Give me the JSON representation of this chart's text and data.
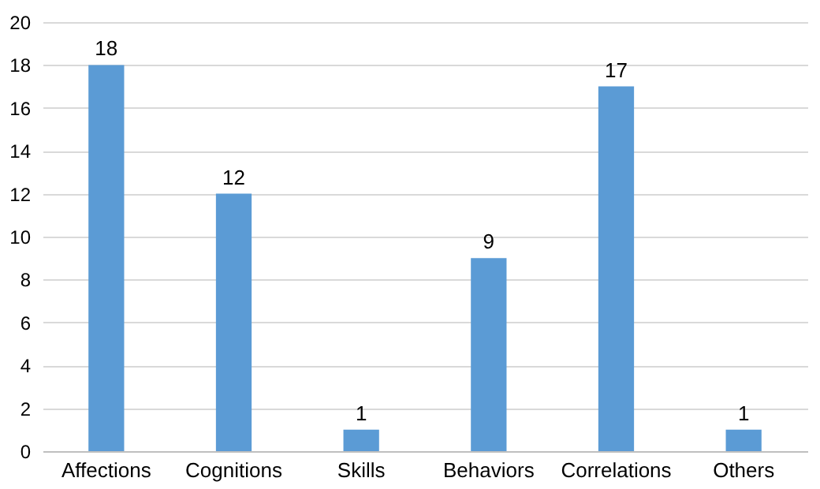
{
  "chart_data": {
    "type": "bar",
    "categories": [
      "Affections",
      "Cognitions",
      "Skills",
      "Behaviors",
      "Correlations",
      "Others"
    ],
    "values": [
      18,
      12,
      1,
      9,
      17,
      1
    ],
    "color": "#5b9bd5",
    "ylim": [
      0,
      20
    ],
    "yticks": [
      0,
      2,
      4,
      6,
      8,
      10,
      12,
      14,
      16,
      18,
      20
    ],
    "grid": "y",
    "data_labels": true
  }
}
